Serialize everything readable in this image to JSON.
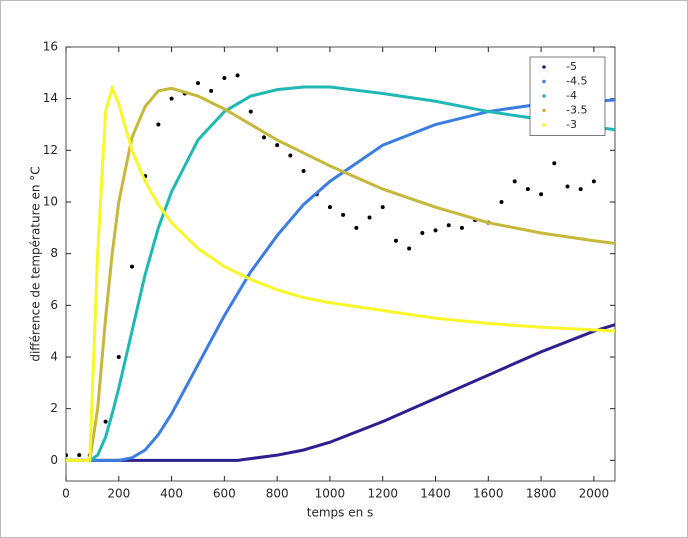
{
  "chart_data": {
    "type": "line",
    "x_label": "temps en s",
    "y_label": "différence de température en °C",
    "xlim": [
      0,
      2080
    ],
    "ylim": [
      -0.8,
      16
    ],
    "xticks": [
      0,
      200,
      400,
      600,
      800,
      1000,
      1200,
      1400,
      1600,
      1800,
      2000
    ],
    "yticks": [
      0,
      2,
      4,
      6,
      8,
      10,
      12,
      14,
      16
    ],
    "grid": false,
    "legend": "upper right",
    "series": [
      {
        "style": "dots",
        "color": "#000000",
        "x": [
          0,
          50,
          90,
          150,
          200,
          250,
          300,
          350,
          400,
          450,
          500,
          550,
          600,
          650,
          700,
          750,
          800,
          850,
          900,
          950,
          1000,
          1050,
          1100,
          1150,
          1200,
          1250,
          1300,
          1350,
          1400,
          1450,
          1500,
          1550,
          1600,
          1650,
          1700,
          1750,
          1800,
          1850,
          1900,
          1950,
          2000
        ],
        "values": [
          0.2,
          0.2,
          0.2,
          1.5,
          4,
          7.5,
          11,
          13,
          14,
          14.2,
          14.6,
          14.3,
          14.8,
          14.9,
          13.5,
          12.5,
          12.2,
          11.8,
          11.2,
          10.3,
          9.8,
          9.5,
          9.0,
          9.4,
          9.8,
          8.5,
          8.2,
          8.8,
          8.9,
          9.1,
          9.0,
          9.3,
          9.2,
          10,
          10.8,
          10.5,
          10.3,
          11.5,
          10.6,
          10.5,
          10.8
        ]
      },
      {
        "name": "-5",
        "color": "#2e1f8f",
        "x": [
          0,
          300,
          650,
          800,
          900,
          1000,
          1200,
          1400,
          1600,
          1800,
          2000,
          2080
        ],
        "values": [
          0,
          0,
          0,
          0.2,
          0.4,
          0.7,
          1.5,
          2.4,
          3.3,
          4.2,
          5.0,
          5.25
        ]
      },
      {
        "name": "-4.5",
        "color": "#3b7ee0",
        "x": [
          0,
          200,
          250,
          300,
          350,
          400,
          500,
          600,
          700,
          800,
          900,
          1000,
          1200,
          1400,
          1600,
          1800,
          2000,
          2080
        ],
        "values": [
          0,
          0,
          0.1,
          0.4,
          1,
          1.8,
          3.7,
          5.6,
          7.3,
          8.7,
          9.9,
          10.8,
          12.2,
          13.0,
          13.5,
          13.8,
          13.9,
          13.95
        ]
      },
      {
        "name": "-4",
        "color": "#1fb8b4",
        "x": [
          0,
          90,
          120,
          150,
          175,
          200,
          250,
          300,
          350,
          400,
          500,
          600,
          700,
          800,
          900,
          1000,
          1200,
          1400,
          1600,
          1800,
          2000,
          2080
        ],
        "values": [
          0,
          0,
          0.2,
          0.9,
          1.8,
          2.8,
          5,
          7.2,
          9,
          10.4,
          12.4,
          13.5,
          14.1,
          14.35,
          14.45,
          14.45,
          14.2,
          13.9,
          13.5,
          13.2,
          12.9,
          12.8
        ]
      },
      {
        "name": "-3.5",
        "color": "#c5b83a",
        "x": [
          0,
          90,
          120,
          150,
          175,
          200,
          250,
          300,
          350,
          400,
          500,
          600,
          700,
          800,
          900,
          1000,
          1200,
          1400,
          1600,
          1800,
          2000,
          2080
        ],
        "values": [
          0,
          0,
          2,
          5.5,
          8,
          10,
          12.5,
          13.7,
          14.3,
          14.4,
          14.1,
          13.6,
          13.0,
          12.4,
          11.9,
          11.4,
          10.5,
          9.8,
          9.2,
          8.8,
          8.5,
          8.4
        ]
      },
      {
        "name": "-3",
        "color": "#f7f72a",
        "x": [
          0,
          90,
          120,
          150,
          175,
          200,
          250,
          300,
          350,
          400,
          500,
          600,
          700,
          800,
          900,
          1000,
          1200,
          1400,
          1600,
          1800,
          2000,
          2080
        ],
        "values": [
          0,
          0,
          8,
          13.5,
          14.4,
          13.8,
          12,
          10.8,
          9.9,
          9.2,
          8.2,
          7.5,
          7.0,
          6.6,
          6.3,
          6.1,
          5.8,
          5.5,
          5.3,
          5.15,
          5.05,
          5.0
        ]
      }
    ]
  }
}
